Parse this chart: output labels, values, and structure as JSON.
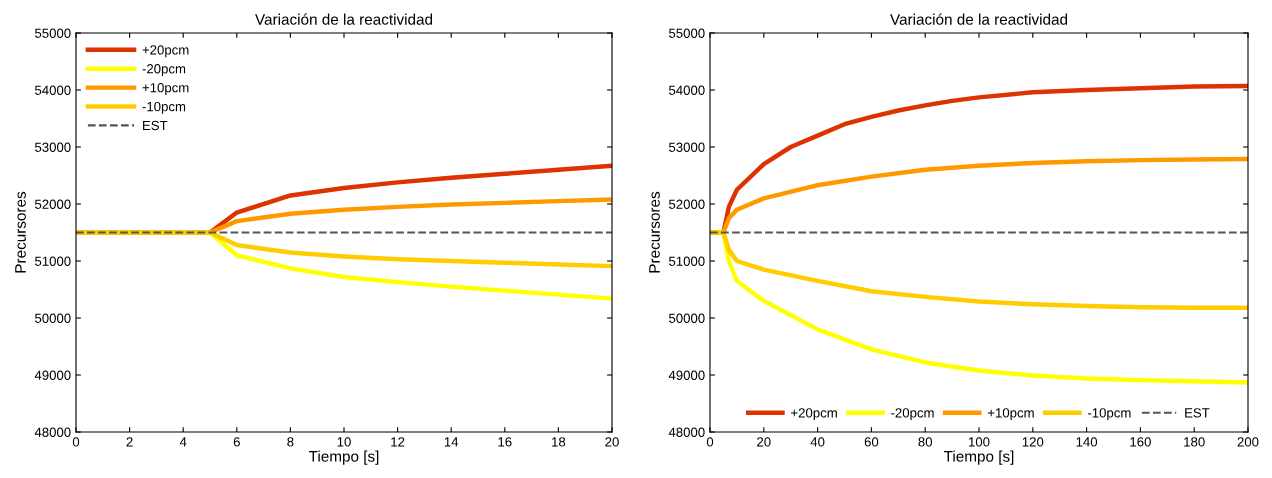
{
  "chart_data": [
    {
      "type": "line",
      "title": "Variación de la reactividad",
      "xlabel": "Tiempo [s]",
      "ylabel": "Precursores",
      "legend": "top left",
      "grid": false,
      "xlim": [
        0,
        20
      ],
      "xticks": [
        0,
        2,
        4,
        6,
        8,
        10,
        12,
        14,
        16,
        18,
        20
      ],
      "ylim": [
        48000,
        55000
      ],
      "yticks": [
        48000,
        49000,
        50000,
        51000,
        52000,
        53000,
        54000,
        55000
      ],
      "series": [
        {
          "name": "+20pcm",
          "color": "#dd3300",
          "x": [
            0,
            5,
            6,
            8,
            10,
            12,
            14,
            16,
            18,
            20
          ],
          "values": [
            51500,
            51500,
            51850,
            52150,
            52280,
            52380,
            52460,
            52530,
            52600,
            52670
          ]
        },
        {
          "name": "-20pcm",
          "color": "#ffff00",
          "x": [
            0,
            5,
            6,
            8,
            10,
            12,
            14,
            16,
            18,
            20
          ],
          "values": [
            51500,
            51500,
            51100,
            50870,
            50720,
            50630,
            50550,
            50480,
            50410,
            50340
          ]
        },
        {
          "name": "+10pcm",
          "color": "#ff9900",
          "x": [
            0,
            5,
            6,
            8,
            10,
            12,
            14,
            16,
            18,
            20
          ],
          "values": [
            51500,
            51500,
            51700,
            51830,
            51900,
            51950,
            51990,
            52020,
            52050,
            52080
          ]
        },
        {
          "name": "-10pcm",
          "color": "#ffcc00",
          "x": [
            0,
            5,
            6,
            8,
            10,
            12,
            14,
            16,
            18,
            20
          ],
          "values": [
            51500,
            51500,
            51280,
            51150,
            51080,
            51030,
            51000,
            50970,
            50940,
            50910
          ]
        },
        {
          "name": "EST",
          "color": "#555555",
          "line_style": "dashed",
          "x": [
            0,
            20
          ],
          "values": [
            51500,
            51500
          ]
        }
      ]
    },
    {
      "type": "line",
      "title": "Variación de la reactividad",
      "xlabel": "Tiempo [s]",
      "ylabel": "Precursores",
      "legend": "bottom",
      "grid": false,
      "xlim": [
        0,
        200
      ],
      "xticks": [
        0,
        20,
        40,
        60,
        80,
        100,
        120,
        140,
        160,
        180,
        200
      ],
      "ylim": [
        48000,
        55000
      ],
      "yticks": [
        48000,
        49000,
        50000,
        51000,
        52000,
        53000,
        54000,
        55000
      ],
      "series": [
        {
          "name": "+20pcm",
          "color": "#dd3300",
          "x": [
            0,
            5,
            7,
            10,
            20,
            30,
            40,
            50,
            60,
            70,
            80,
            90,
            100,
            120,
            140,
            160,
            180,
            200
          ],
          "values": [
            51500,
            51500,
            51950,
            52250,
            52700,
            53000,
            53200,
            53400,
            53530,
            53640,
            53730,
            53810,
            53870,
            53960,
            54000,
            54030,
            54060,
            54070
          ]
        },
        {
          "name": "-20pcm",
          "color": "#ffff00",
          "x": [
            0,
            5,
            7,
            10,
            20,
            40,
            60,
            80,
            100,
            120,
            140,
            160,
            180,
            200
          ],
          "values": [
            51500,
            51500,
            51000,
            50650,
            50300,
            49800,
            49450,
            49220,
            49080,
            48990,
            48940,
            48910,
            48890,
            48870
          ]
        },
        {
          "name": "+10pcm",
          "color": "#ff9900",
          "x": [
            0,
            5,
            7,
            10,
            20,
            40,
            60,
            80,
            100,
            120,
            140,
            160,
            180,
            200
          ],
          "values": [
            51500,
            51500,
            51750,
            51900,
            52100,
            52330,
            52480,
            52600,
            52670,
            52720,
            52750,
            52770,
            52780,
            52790
          ]
        },
        {
          "name": "-10pcm",
          "color": "#ffcc00",
          "x": [
            0,
            5,
            7,
            10,
            20,
            40,
            60,
            80,
            100,
            120,
            140,
            160,
            180,
            200
          ],
          "values": [
            51500,
            51500,
            51200,
            51000,
            50850,
            50650,
            50470,
            50370,
            50290,
            50240,
            50210,
            50190,
            50180,
            50180
          ]
        },
        {
          "name": "EST",
          "color": "#555555",
          "line_style": "dashed",
          "x": [
            0,
            200
          ],
          "values": [
            51500,
            51500
          ]
        }
      ]
    }
  ]
}
